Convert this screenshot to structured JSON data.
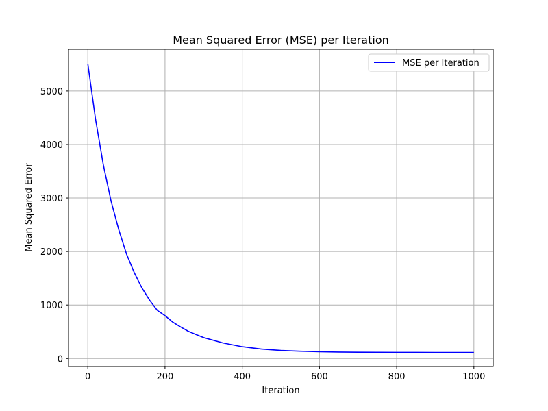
{
  "chart_data": {
    "type": "line",
    "title": "Mean Squared Error (MSE) per Iteration",
    "xlabel": "Iteration",
    "ylabel": "Mean Squared Error",
    "xlim": [
      -50,
      1050
    ],
    "ylim": [
      -150,
      5780
    ],
    "xticks": [
      0,
      200,
      400,
      600,
      800,
      1000
    ],
    "yticks": [
      0,
      1000,
      2000,
      3000,
      4000,
      5000
    ],
    "grid": true,
    "legend_position": "top-right",
    "series": [
      {
        "name": "MSE per Iteration",
        "color": "#0000ff",
        "x": [
          0,
          20,
          40,
          60,
          80,
          100,
          120,
          140,
          160,
          180,
          200,
          220,
          240,
          260,
          280,
          300,
          350,
          400,
          450,
          500,
          550,
          600,
          650,
          700,
          750,
          800,
          850,
          900,
          950,
          1000
        ],
        "y": [
          5510,
          4470,
          3630,
          2950,
          2410,
          1960,
          1610,
          1320,
          1090,
          900,
          800,
          680,
          590,
          510,
          450,
          390,
          290,
          220,
          175,
          150,
          135,
          125,
          120,
          117,
          115,
          114,
          114,
          113,
          113,
          113
        ]
      }
    ]
  }
}
